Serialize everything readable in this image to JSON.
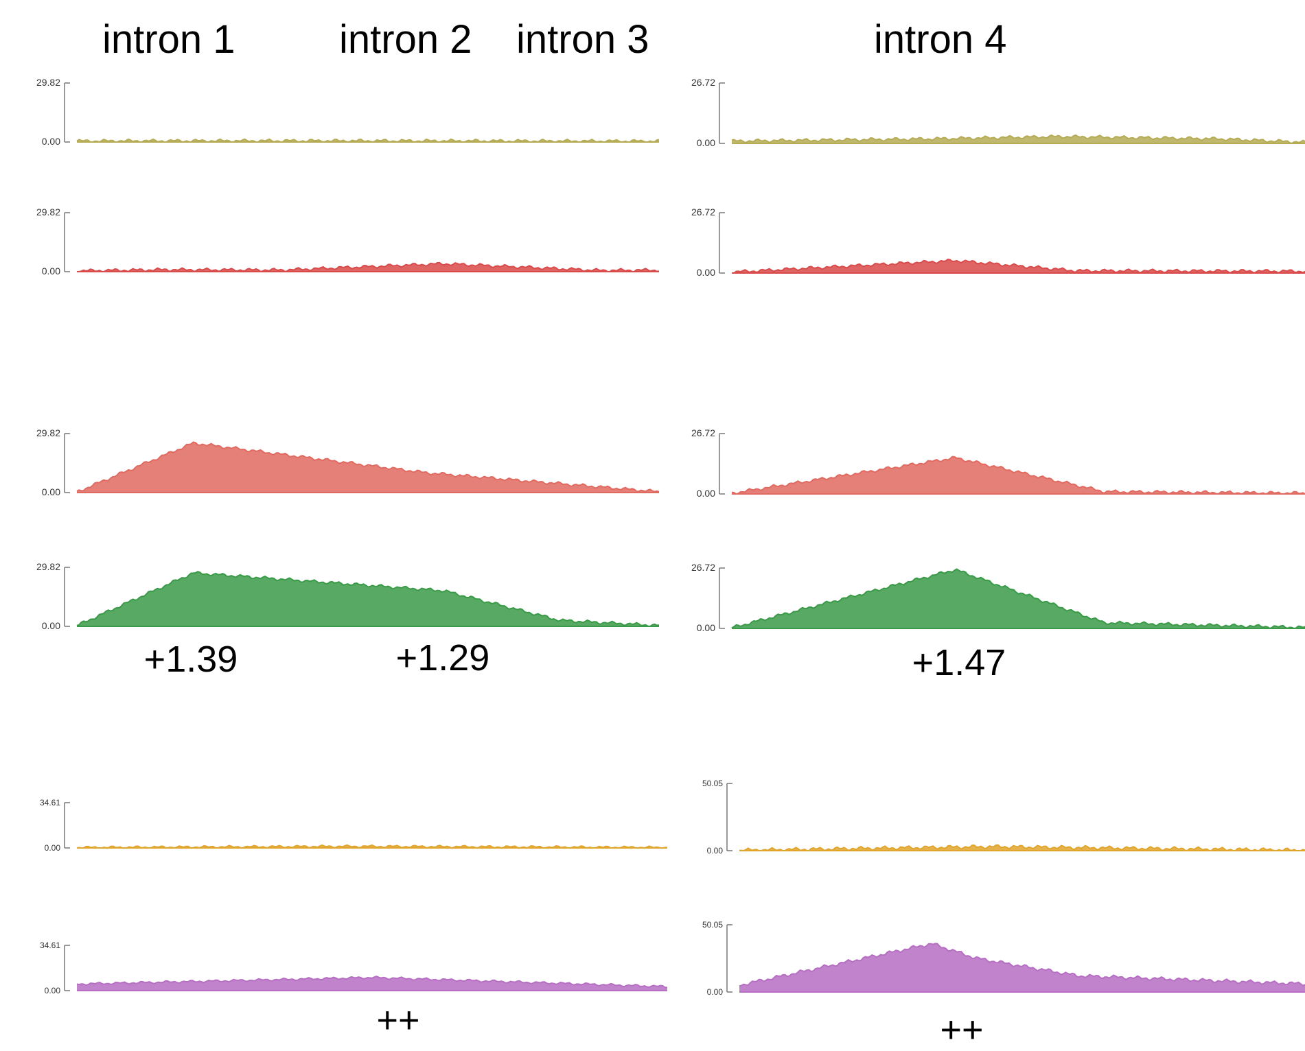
{
  "headers": {
    "intron1": "intron 1",
    "intron2": "intron 2",
    "intron3": "intron 3",
    "intron4": "intron 4"
  },
  "annotations": {
    "left_block_a": "+1.39",
    "left_block_b": "+1.29",
    "right_block": "+1.47",
    "left_bottom": "++",
    "right_bottom": "++"
  },
  "chart_data": [
    {
      "type": "area",
      "panel": "left",
      "track": 1,
      "color": "#b5ab55",
      "ylim": [
        0,
        29.82
      ],
      "ytick_labels": [
        "29.82",
        "0.00"
      ],
      "x": [
        0,
        0.25,
        0.5,
        0.75,
        1
      ],
      "y": [
        0.5,
        0.6,
        0.6,
        0.5,
        0.4
      ]
    },
    {
      "type": "area",
      "panel": "left",
      "track": 2,
      "color": "#d94a4a",
      "ylim": [
        0,
        29.82
      ],
      "ytick_labels": [
        "29.82",
        "0.00"
      ],
      "x": [
        0,
        0.15,
        0.35,
        0.63,
        0.9,
        1
      ],
      "y": [
        0.4,
        1.0,
        0.8,
        4.0,
        0.6,
        0.8
      ]
    },
    {
      "type": "area",
      "panel": "left",
      "track": 3,
      "color": "#e06a60",
      "ylim": [
        0,
        29.82
      ],
      "ytick_labels": [
        "29.82",
        "0.00"
      ],
      "x": [
        0,
        0.2,
        0.6,
        1
      ],
      "y": [
        0.3,
        25.0,
        10.0,
        0.4
      ]
    },
    {
      "type": "area",
      "panel": "left",
      "track": 4,
      "color": "#3a9a48",
      "ylim": [
        0,
        29.82
      ],
      "ytick_labels": [
        "29.82",
        "0.00"
      ],
      "x": [
        0,
        0.2,
        0.63,
        0.83,
        1
      ],
      "y": [
        0.4,
        27.0,
        18.0,
        3.0,
        0.4
      ]
    },
    {
      "type": "area",
      "panel": "left",
      "track": 5,
      "color": "#e0a52d",
      "ylim": [
        0,
        34.61
      ],
      "ytick_labels": [
        "34.61",
        "0.00"
      ],
      "x": [
        0,
        0.47,
        1
      ],
      "y": [
        0.3,
        1.2,
        0.3
      ]
    },
    {
      "type": "area",
      "panel": "left",
      "track": 6,
      "color": "#b66ec3",
      "ylim": [
        0,
        34.61
      ],
      "ytick_labels": [
        "34.61",
        "0.00"
      ],
      "x": [
        0,
        0.5,
        1
      ],
      "y": [
        5.0,
        10.0,
        3.0
      ]
    },
    {
      "type": "area",
      "panel": "right",
      "track": 1,
      "color": "#b5ab55",
      "ylim": [
        0,
        26.72
      ],
      "ytick_labels": [
        "26.72",
        "0.00"
      ],
      "x": [
        0,
        0.35,
        0.57,
        0.85,
        1
      ],
      "y": [
        1.0,
        2.0,
        3.0,
        2.0,
        0.5
      ]
    },
    {
      "type": "area",
      "panel": "right",
      "track": 2,
      "color": "#d94a4a",
      "ylim": [
        0,
        26.72
      ],
      "ytick_labels": [
        "26.72",
        "0.00"
      ],
      "x": [
        0,
        0.39,
        0.6,
        1
      ],
      "y": [
        0.4,
        5.5,
        1.0,
        0.8
      ]
    },
    {
      "type": "area",
      "panel": "right",
      "track": 3,
      "color": "#e06a60",
      "ylim": [
        0,
        26.72
      ],
      "ytick_labels": [
        "26.72",
        "0.00"
      ],
      "x": [
        0,
        0.39,
        0.65,
        1
      ],
      "y": [
        0.3,
        16.0,
        1.0,
        0.3
      ]
    },
    {
      "type": "area",
      "panel": "right",
      "track": 4,
      "color": "#3a9a48",
      "ylim": [
        0,
        26.72
      ],
      "ytick_labels": [
        "26.72",
        "0.00"
      ],
      "x": [
        0,
        0.39,
        0.65,
        1
      ],
      "y": [
        0.3,
        26.0,
        2.5,
        0.4
      ]
    },
    {
      "type": "area",
      "panel": "right",
      "track": 5,
      "color": "#e0a52d",
      "ylim": [
        0,
        50.05
      ],
      "ytick_labels": [
        "50.05",
        "0.00"
      ],
      "x": [
        0,
        0.35,
        0.45,
        1
      ],
      "y": [
        0.3,
        2.5,
        3.0,
        0.3
      ]
    },
    {
      "type": "area",
      "panel": "right",
      "track": 6,
      "color": "#b66ec3",
      "ylim": [
        0,
        50.05
      ],
      "ytick_labels": [
        "50.05",
        "0.00"
      ],
      "x": [
        0,
        0.34,
        0.42,
        0.6,
        1
      ],
      "y": [
        5.0,
        36.0,
        25.0,
        12.0,
        6.0
      ]
    }
  ]
}
